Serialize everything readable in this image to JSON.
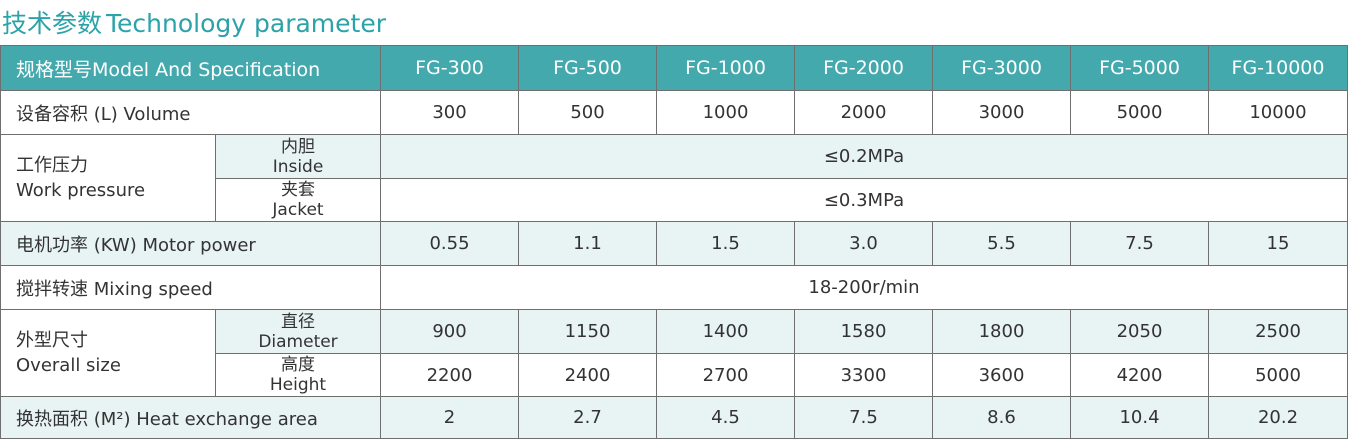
{
  "title": {
    "cn": "技术参数",
    "en": "Technology parameter"
  },
  "table": {
    "header": {
      "label": "规格型号Model And Specification",
      "models": [
        "FG-300",
        "FG-500",
        "FG-1000",
        "FG-2000",
        "FG-3000",
        "FG-5000",
        "FG-10000"
      ]
    },
    "volume": {
      "label": "设备容积 (L)  Volume",
      "values": [
        "300",
        "500",
        "1000",
        "2000",
        "3000",
        "5000",
        "10000"
      ]
    },
    "pressure": {
      "label_cn": "工作压力",
      "label_en": "Work pressure",
      "inside": {
        "cn": "内胆",
        "en": "Inside",
        "value": "≤0.2MPa"
      },
      "jacket": {
        "cn": "夹套",
        "en": "Jacket",
        "value": "≤0.3MPa"
      }
    },
    "motor": {
      "label": "电机功率 (KW)  Motor power",
      "values": [
        "0.55",
        "1.1",
        "1.5",
        "3.0",
        "5.5",
        "7.5",
        "15"
      ]
    },
    "mixing": {
      "label": "搅拌转速  Mixing speed",
      "value": "18-200r/min"
    },
    "size": {
      "label_cn": "外型尺寸",
      "label_en": "Overall size",
      "diameter": {
        "cn": "直径",
        "en": "Diameter",
        "values": [
          "900",
          "1150",
          "1400",
          "1580",
          "1800",
          "2050",
          "2500"
        ]
      },
      "height": {
        "cn": "高度",
        "en": "Height",
        "values": [
          "2200",
          "2400",
          "2700",
          "3300",
          "3600",
          "4200",
          "5000"
        ]
      }
    },
    "heat": {
      "label": "换热面积 (M²)  Heat exchange area",
      "values": [
        "2",
        "2.7",
        "4.5",
        "7.5",
        "8.6",
        "10.4",
        "20.2"
      ]
    }
  }
}
